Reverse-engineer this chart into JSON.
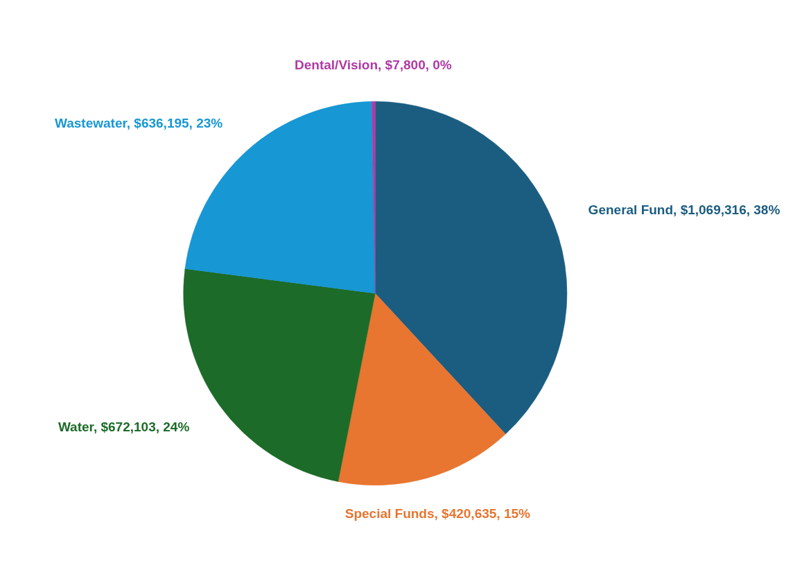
{
  "chart_data": {
    "type": "pie",
    "categories": [
      "General Fund",
      "Special Funds",
      "Water",
      "Wastewater",
      "Dental/Vision"
    ],
    "values": [
      1069316,
      420635,
      672103,
      636195,
      7800
    ],
    "colors": [
      "#1a5d80",
      "#e87530",
      "#1c6b28",
      "#1797d4",
      "#b03aa6"
    ],
    "value_labels": [
      "$1,069,316, 38%",
      "$420,635, 15%",
      "$672,103, 24%",
      "$636,195, 23%",
      "$7,800, 0%"
    ]
  }
}
